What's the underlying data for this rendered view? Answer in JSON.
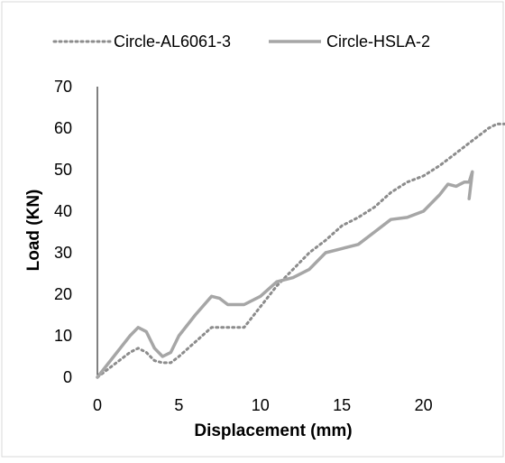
{
  "chart_data": {
    "type": "line",
    "title": "",
    "xlabel": "Displacement (mm)",
    "ylabel": "Load (KN)",
    "xlim": [
      0,
      25
    ],
    "ylim": [
      0,
      70
    ],
    "x_ticks": [
      "0",
      "5",
      "10",
      "15",
      "20"
    ],
    "y_ticks": [
      "0",
      "10",
      "20",
      "30",
      "40",
      "50",
      "60",
      "70"
    ],
    "grid": false,
    "legend_position": "top",
    "series": [
      {
        "name": "Circle-AL6061-3",
        "style": "dotted",
        "color": "#8c8c8c",
        "x": [
          0,
          1,
          2,
          2.5,
          3,
          3.5,
          4,
          4.5,
          5,
          6,
          7,
          8,
          9,
          10,
          11,
          12,
          13,
          14,
          15,
          16,
          17,
          18,
          19,
          20,
          21,
          22,
          23,
          24,
          24.5,
          25
        ],
        "y": [
          0,
          3,
          6,
          7,
          6,
          4,
          3.5,
          3.5,
          5,
          8.5,
          12,
          12,
          12,
          17,
          22,
          26,
          30,
          33,
          36.5,
          38.5,
          41,
          44.5,
          47,
          48.5,
          51,
          54,
          57,
          60,
          61,
          61
        ]
      },
      {
        "name": "Circle-HSLA-2",
        "style": "solid",
        "color": "#a6a6a6",
        "x": [
          0,
          1,
          2,
          2.5,
          3,
          3.5,
          4,
          4.5,
          5,
          6,
          7,
          7.5,
          8,
          9,
          10,
          11,
          12,
          13,
          14,
          15,
          16,
          17,
          18,
          19,
          20,
          21,
          21.5,
          22,
          22.5,
          22.8,
          23,
          22.8
        ],
        "y": [
          0,
          5,
          10,
          12,
          11,
          7,
          5,
          6,
          10,
          15,
          19.5,
          19,
          17.5,
          17.5,
          19.5,
          23,
          24,
          26,
          30,
          31,
          32,
          35,
          38,
          38.5,
          40,
          44,
          46.5,
          46,
          47,
          47,
          49.5,
          43
        ]
      }
    ]
  }
}
